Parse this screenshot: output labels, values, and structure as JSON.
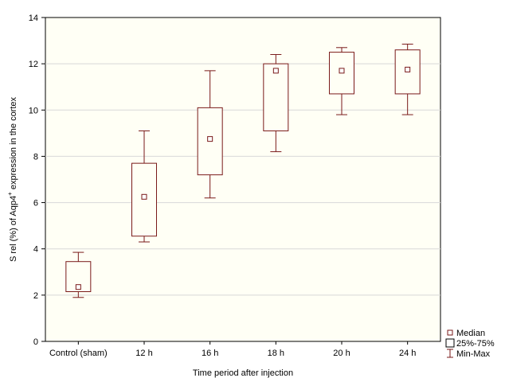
{
  "chart_data": {
    "type": "box",
    "title": "",
    "xlabel": "Time period after injection",
    "ylabel_parts": [
      "S rel (%) of Aqp4",
      "+",
      " expression in the cortex"
    ],
    "ylim": [
      0,
      14
    ],
    "yticks": [
      0,
      2,
      4,
      6,
      8,
      10,
      12,
      14
    ],
    "grid": true,
    "legend_position": "bottom-right",
    "categories": [
      "Control (sham)",
      "12 h",
      "16 h",
      "18 h",
      "20 h",
      "24 h"
    ],
    "boxes": [
      {
        "category": "Control (sham)",
        "min": 1.9,
        "q1": 2.15,
        "median": 2.35,
        "q3": 3.45,
        "max": 3.85
      },
      {
        "category": "12 h",
        "min": 4.3,
        "q1": 4.55,
        "median": 6.25,
        "q3": 7.7,
        "max": 9.1
      },
      {
        "category": "16 h",
        "min": 6.2,
        "q1": 7.2,
        "median": 8.75,
        "q3": 10.1,
        "max": 11.7
      },
      {
        "category": "18 h",
        "min": 8.2,
        "q1": 9.1,
        "median": 11.7,
        "q3": 12.0,
        "max": 12.4
      },
      {
        "category": "20 h",
        "min": 9.8,
        "q1": 10.7,
        "median": 11.7,
        "q3": 12.5,
        "max": 12.7
      },
      {
        "category": "24 h",
        "min": 9.8,
        "q1": 10.7,
        "median": 11.75,
        "q3": 12.6,
        "max": 12.85
      }
    ],
    "legend": [
      {
        "key": "median",
        "label": "Median"
      },
      {
        "key": "box",
        "label": "25%-75%"
      },
      {
        "key": "whisker",
        "label": "Min-Max"
      }
    ],
    "colors": {
      "plot_background": "#fffff5",
      "frame": "#000000",
      "grid": "#d8d8d8",
      "box_stroke": "#7a1a1a",
      "whisker_stroke": "#7a1a1a",
      "median_marker": "#7a1a1a"
    }
  }
}
